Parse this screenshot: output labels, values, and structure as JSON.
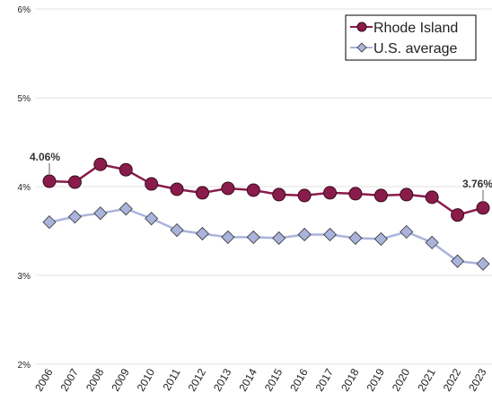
{
  "chart_data": {
    "type": "line",
    "categories": [
      "2006",
      "2007",
      "2008",
      "2009",
      "2010",
      "2011",
      "2012",
      "2013",
      "2014",
      "2015",
      "2016",
      "2017",
      "2018",
      "2019",
      "2020",
      "2021",
      "2022",
      "2023"
    ],
    "series": [
      {
        "name": "Rhode Island",
        "color": "#8a1c4c",
        "marker": "circle",
        "values": [
          4.06,
          4.05,
          4.25,
          4.19,
          4.03,
          3.97,
          3.93,
          3.98,
          3.96,
          3.91,
          3.9,
          3.93,
          3.92,
          3.9,
          3.91,
          3.88,
          3.68,
          3.76
        ],
        "value_labels": [
          "4.06%",
          null,
          null,
          null,
          null,
          null,
          null,
          null,
          null,
          null,
          null,
          null,
          null,
          null,
          null,
          null,
          null,
          "3.76%"
        ]
      },
      {
        "name": "U.S. average",
        "color": "#a9b3db",
        "marker": "diamond",
        "values": [
          3.6,
          3.66,
          3.7,
          3.75,
          3.64,
          3.51,
          3.47,
          3.43,
          3.43,
          3.42,
          3.46,
          3.46,
          3.42,
          3.41,
          3.49,
          3.37,
          3.16,
          3.13
        ]
      }
    ],
    "ylim": [
      2,
      6
    ],
    "yticks": [
      {
        "value": 2,
        "label": "2%"
      },
      {
        "value": 3,
        "label": "3%"
      },
      {
        "value": 4,
        "label": "4%"
      },
      {
        "value": 5,
        "label": "5%"
      },
      {
        "value": 6,
        "label": "6%"
      }
    ],
    "grid": true,
    "legend": "upper right"
  }
}
